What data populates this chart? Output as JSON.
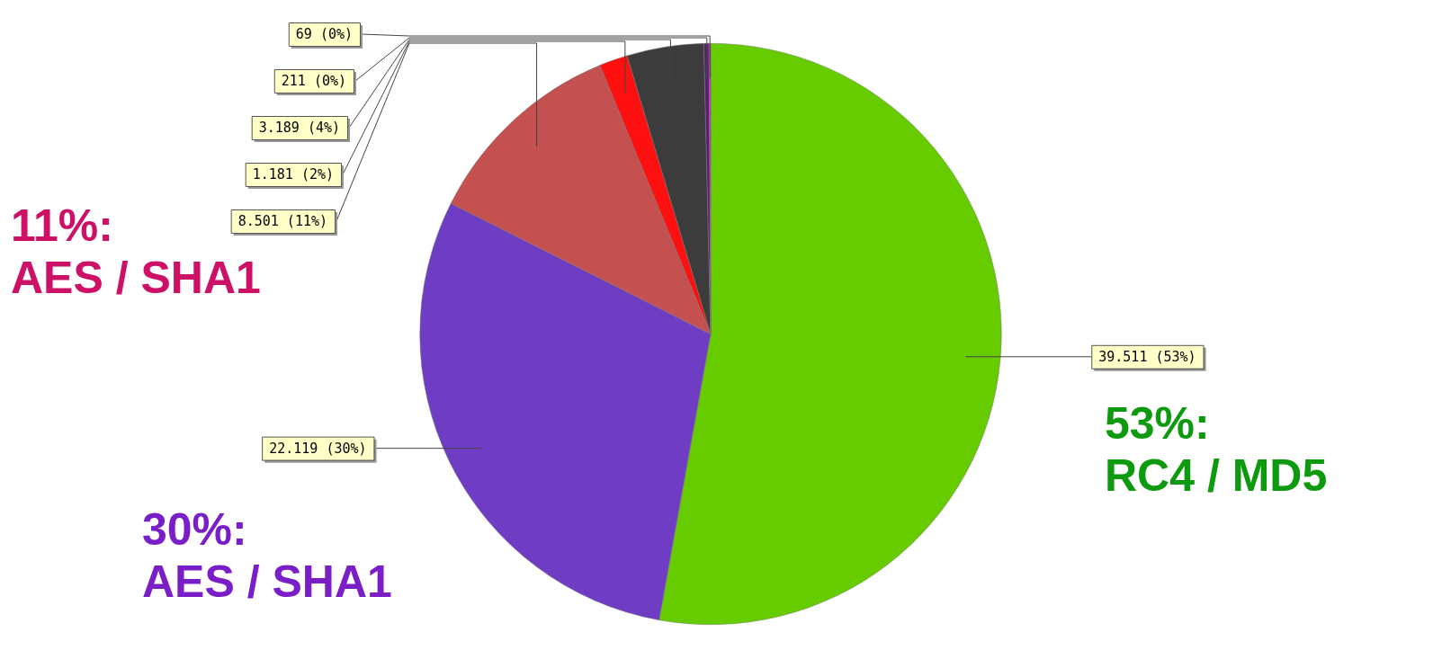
{
  "chart_data": {
    "type": "pie",
    "categories": [
      null,
      null,
      null,
      null,
      null,
      null,
      null
    ],
    "values": [
      39511,
      22119,
      8501,
      1181,
      3189,
      211,
      69
    ],
    "colors": [
      "#66cc00",
      "#6f3cc4",
      "#c45050",
      "#ff1010",
      "#3c3c3c",
      "#5a2070",
      "#e020e0"
    ],
    "value_labels": [
      "39.511 (53%)",
      "22.119 (30%)",
      "8.501 (11%)",
      "1.181 (2%)",
      "3.189 (4%)",
      "211 (0%)",
      "69 (0%)"
    ],
    "legend": false,
    "annotations": [
      "11%: AES / SHA1",
      "30%: AES / SHA1",
      "53%: RC4 / MD5"
    ]
  }
}
